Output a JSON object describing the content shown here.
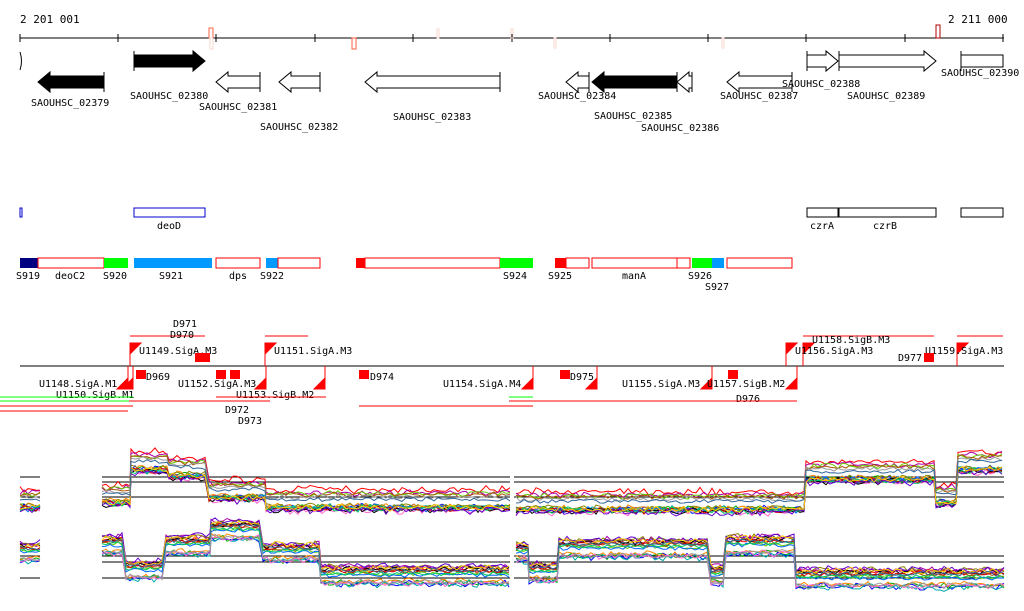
{
  "ruler": {
    "start_label": "2 201 001",
    "end_label": "2 211 000"
  },
  "genes": [
    {
      "name": "SAOUHSC_02379",
      "strand": "-",
      "filled": true
    },
    {
      "name": "SAOUHSC_02380",
      "strand": "+",
      "filled": true
    },
    {
      "name": "SAOUHSC_02381",
      "strand": "-",
      "filled": false
    },
    {
      "name": "SAOUHSC_02382",
      "strand": "-",
      "filled": false
    },
    {
      "name": "SAOUHSC_02383",
      "strand": "-",
      "filled": false
    },
    {
      "name": "SAOUHSC_02384",
      "strand": "-",
      "filled": false
    },
    {
      "name": "SAOUHSC_02385",
      "strand": "-",
      "filled": true
    },
    {
      "name": "SAOUHSC_02386",
      "strand": "-",
      "filled": false
    },
    {
      "name": "SAOUHSC_02387",
      "strand": "-",
      "filled": false
    },
    {
      "name": "SAOUHSC_02388",
      "strand": "+",
      "filled": false
    },
    {
      "name": "SAOUHSC_02389",
      "strand": "+",
      "filled": false
    },
    {
      "name": "SAOUHSC_02390",
      "strand": "+",
      "filled": false
    }
  ],
  "gene_names": [
    "deoD",
    "czrA",
    "czrB"
  ],
  "segments": [
    "S919",
    "deoC2",
    "S920",
    "S921",
    "dps",
    "S922",
    "S924",
    "S925",
    "manA",
    "S926",
    "S927"
  ],
  "promoters": [
    "U1149.SigA.M3",
    "U1151.SigA.M3",
    "U1148.SigA.M1",
    "U1150.SigB.M1",
    "U1152.SigA.M3",
    "U1153.SigB.M2",
    "U1154.SigA.M4",
    "U1155.SigA.M3",
    "U1157.SigB.M2",
    "U1156.SigA.M3",
    "U1158.SigB.M3",
    "U1159.SigA.M3"
  ],
  "terminators": [
    "D969",
    "D970",
    "D971",
    "D972",
    "D973",
    "D974",
    "D975",
    "D976",
    "D977"
  ],
  "colors": {
    "red": "#ff0000",
    "green": "#00ff00",
    "blue": "#0099ff",
    "navy": "#000080",
    "gene_blue": "#0000cc"
  }
}
